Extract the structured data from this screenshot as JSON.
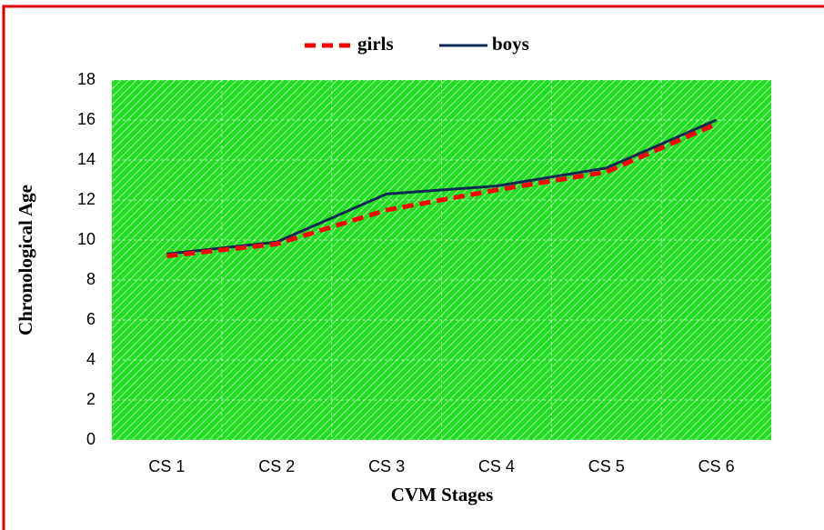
{
  "chart_data": {
    "type": "line",
    "x_label": "CVM Stages",
    "y_label": "Chronological Age",
    "categories": [
      "CS 1",
      "CS 2",
      "CS 3",
      "CS 4",
      "CS 5",
      "CS 6"
    ],
    "series": [
      {
        "name": "girls",
        "color": "#ff0000",
        "dashed": true,
        "values": [
          9.2,
          9.8,
          11.5,
          12.5,
          13.4,
          15.8
        ]
      },
      {
        "name": "boys",
        "color": "#0d2b52",
        "dashed": false,
        "values": [
          9.3,
          9.9,
          12.3,
          12.7,
          13.6,
          16.0
        ]
      }
    ],
    "ylim": [
      0,
      18
    ],
    "yticks": [
      0,
      2,
      4,
      6,
      8,
      10,
      12,
      14,
      16,
      18
    ],
    "grid": true,
    "legend": "top",
    "background": "#22dd22"
  }
}
